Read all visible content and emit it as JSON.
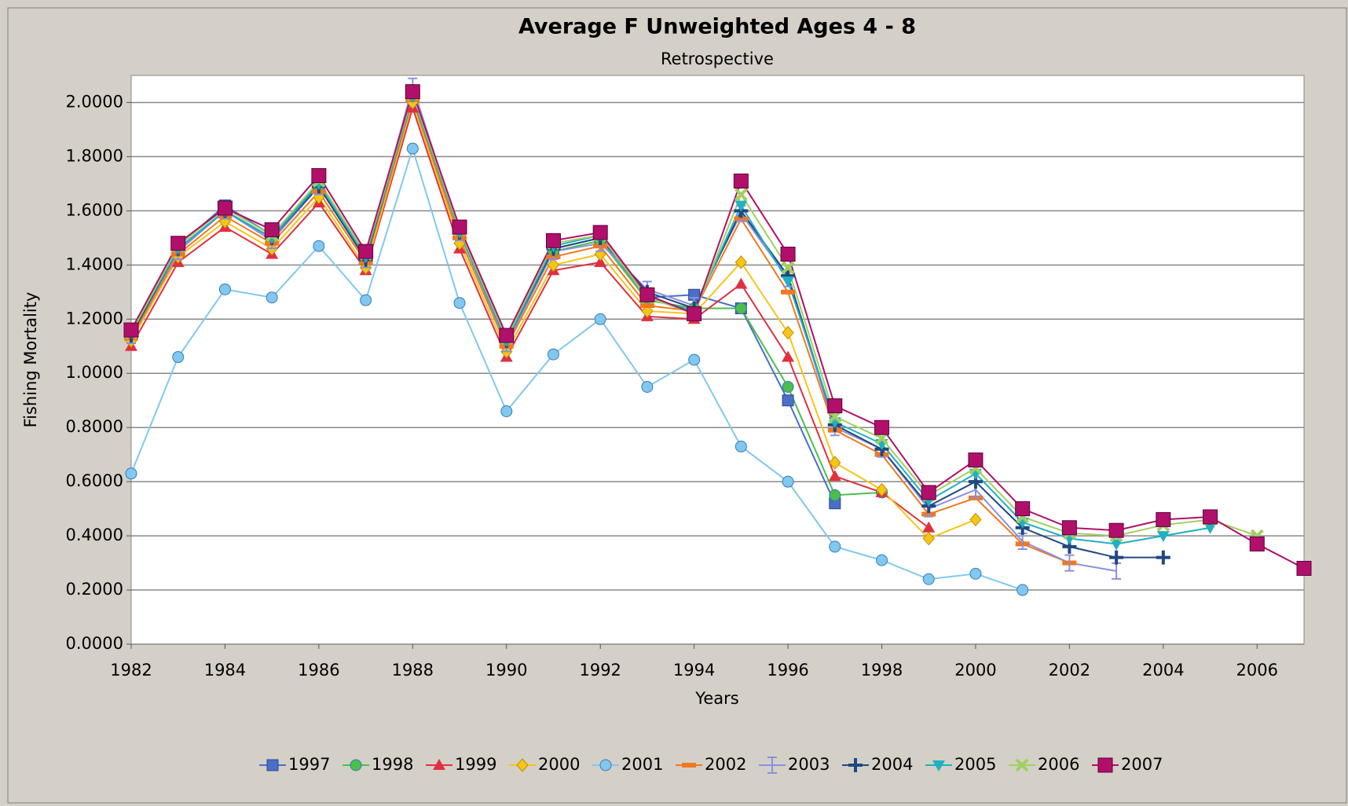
{
  "chart_data": {
    "type": "line",
    "title": "Average F Unweighted Ages 4 - 8",
    "subtitle": "Retrospective",
    "x_label": "Years",
    "y_label": "Fishing Mortality",
    "x": [
      1982,
      1983,
      1984,
      1985,
      1986,
      1987,
      1988,
      1989,
      1990,
      1991,
      1992,
      1993,
      1994,
      1995,
      1996,
      1997,
      1998,
      1999,
      2000,
      2001,
      2002,
      2003,
      2004,
      2005,
      2006,
      2007
    ],
    "xlim": [
      1982,
      2007
    ],
    "xticks": [
      1982,
      1984,
      1986,
      1988,
      1990,
      1992,
      1994,
      1996,
      1998,
      2000,
      2002,
      2004,
      2006
    ],
    "ylim": [
      0,
      2.1
    ],
    "yticks": [
      {
        "value": 0,
        "label": "0.0000"
      },
      {
        "value": 0.2,
        "label": "0.2000"
      },
      {
        "value": 0.4,
        "label": "0.4000"
      },
      {
        "value": 0.6,
        "label": "0.6000"
      },
      {
        "value": 0.8,
        "label": "0.8000"
      },
      {
        "value": 1,
        "label": "1.0000"
      },
      {
        "value": 1.2,
        "label": "1.2000"
      },
      {
        "value": 1.4,
        "label": "1.4000"
      },
      {
        "value": 1.6,
        "label": "1.6000"
      },
      {
        "value": 1.8,
        "label": "1.8000"
      },
      {
        "value": 2,
        "label": "2.0000"
      }
    ],
    "grid": true,
    "legend": "bottom",
    "series": [
      {
        "name": "1997",
        "color": "#4a6fc7",
        "marker": "square",
        "values": [
          1.16,
          1.47,
          1.62,
          1.51,
          1.7,
          1.43,
          2.04,
          1.53,
          1.12,
          1.46,
          1.5,
          1.28,
          1.29,
          1.24,
          0.9,
          0.52,
          null,
          null,
          null,
          null,
          null,
          null,
          null,
          null,
          null,
          null
        ]
      },
      {
        "name": "1998",
        "color": "#4bbf4b",
        "marker": "circle",
        "values": [
          1.15,
          1.46,
          1.6,
          1.5,
          1.69,
          1.42,
          2.03,
          1.52,
          1.11,
          1.45,
          1.49,
          1.27,
          1.24,
          1.24,
          0.95,
          0.55,
          0.56,
          null,
          null,
          null,
          null,
          null,
          null,
          null,
          null,
          null
        ]
      },
      {
        "name": "1999",
        "color": "#e03040",
        "marker": "triangle",
        "values": [
          1.1,
          1.41,
          1.54,
          1.44,
          1.63,
          1.38,
          1.98,
          1.46,
          1.06,
          1.38,
          1.41,
          1.21,
          1.2,
          1.33,
          1.06,
          0.62,
          0.56,
          0.43,
          null,
          null,
          null,
          null,
          null,
          null,
          null,
          null
        ]
      },
      {
        "name": "2000",
        "color": "#f5c518",
        "marker": "diamond",
        "values": [
          1.12,
          1.43,
          1.56,
          1.46,
          1.65,
          1.39,
          2.0,
          1.48,
          1.08,
          1.4,
          1.44,
          1.23,
          1.22,
          1.41,
          1.15,
          0.67,
          0.57,
          0.39,
          0.46,
          null,
          null,
          null,
          null,
          null,
          null,
          null
        ]
      },
      {
        "name": "2001",
        "color": "#80c8f0",
        "marker": "circle",
        "values": [
          0.63,
          1.06,
          1.31,
          1.28,
          1.47,
          1.27,
          1.83,
          1.26,
          0.86,
          1.07,
          1.2,
          0.95,
          1.05,
          0.73,
          0.6,
          0.36,
          0.31,
          0.24,
          0.26,
          0.2,
          null,
          null,
          null,
          null,
          null,
          null
        ]
      },
      {
        "name": "2002",
        "color": "#f07820",
        "marker": "dash",
        "values": [
          1.13,
          1.44,
          1.58,
          1.48,
          1.67,
          1.41,
          2.01,
          1.5,
          1.1,
          1.43,
          1.47,
          1.25,
          1.23,
          1.57,
          1.3,
          0.79,
          0.7,
          0.48,
          0.54,
          0.37,
          0.3,
          null,
          null,
          null,
          null,
          null
        ]
      },
      {
        "name": "2003",
        "color": "#8890e0",
        "marker": "pipe",
        "values": [
          1.14,
          1.45,
          1.6,
          1.49,
          1.69,
          1.42,
          2.06,
          1.52,
          1.11,
          1.45,
          1.48,
          1.31,
          1.25,
          1.59,
          1.35,
          0.8,
          0.72,
          0.5,
          0.57,
          0.38,
          0.3,
          0.27,
          null,
          null,
          null,
          null
        ]
      },
      {
        "name": "2004",
        "color": "#204880",
        "marker": "plus",
        "values": [
          1.14,
          1.46,
          1.6,
          1.5,
          1.69,
          1.42,
          2.03,
          1.52,
          1.12,
          1.46,
          1.5,
          1.3,
          1.24,
          1.6,
          1.36,
          0.81,
          0.72,
          0.51,
          0.6,
          0.43,
          0.36,
          0.32,
          0.32,
          null,
          null,
          null
        ]
      },
      {
        "name": "2005",
        "color": "#20b0c0",
        "marker": "triangle-down",
        "values": [
          1.15,
          1.46,
          1.6,
          1.5,
          1.7,
          1.43,
          2.02,
          1.52,
          1.12,
          1.47,
          1.51,
          1.28,
          1.23,
          1.62,
          1.34,
          0.82,
          0.74,
          0.53,
          0.63,
          0.45,
          0.39,
          0.37,
          0.4,
          0.43,
          null,
          null
        ]
      },
      {
        "name": "2006",
        "color": "#a0d060",
        "marker": "x",
        "values": [
          1.15,
          1.47,
          1.61,
          1.51,
          1.71,
          1.44,
          2.03,
          1.53,
          1.13,
          1.48,
          1.51,
          1.28,
          1.22,
          1.66,
          1.39,
          0.84,
          0.76,
          0.55,
          0.65,
          0.47,
          0.41,
          0.4,
          0.44,
          0.46,
          0.4,
          null
        ]
      },
      {
        "name": "2007",
        "color": "#b0106a",
        "marker": "big-square",
        "values": [
          1.16,
          1.48,
          1.61,
          1.53,
          1.73,
          1.45,
          2.04,
          1.54,
          1.14,
          1.49,
          1.52,
          1.29,
          1.22,
          1.71,
          1.44,
          0.88,
          0.8,
          0.56,
          0.68,
          0.5,
          0.43,
          0.42,
          0.46,
          0.47,
          0.37,
          0.28
        ]
      }
    ]
  }
}
